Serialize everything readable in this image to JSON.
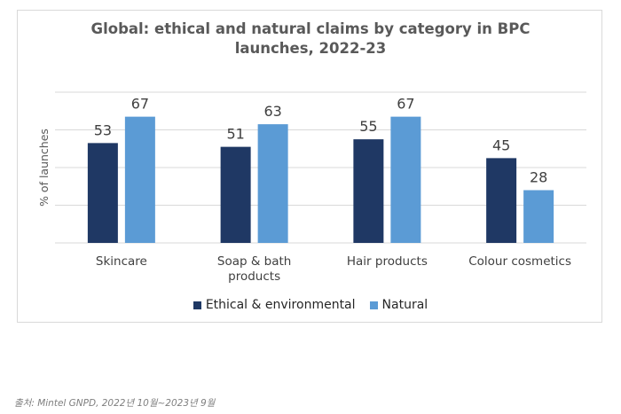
{
  "chart_data": {
    "type": "bar",
    "title": "Global: ethical and natural claims by category in BPC\nlaunches, 2022-23",
    "ylabel": "% of launches",
    "xlabel": "",
    "categories": [
      "Skincare",
      "Soap & bath\nproducts",
      "Hair products",
      "Colour cosmetics"
    ],
    "series": [
      {
        "name": "Ethical & environmental",
        "values": [
          53,
          51,
          55,
          45
        ],
        "color": "#1f3864"
      },
      {
        "name": "Natural",
        "values": [
          67,
          63,
          67,
          28
        ],
        "color": "#5b9bd5"
      }
    ],
    "ylim": [
      0,
      80
    ],
    "yticks": [
      0,
      20,
      40,
      60,
      80
    ],
    "grid": true,
    "data_labels": true,
    "legend_position": "bottom",
    "gridline_color": "#d9d9d9"
  },
  "source": "출처: Mintel GNPD, 2022년 10월~2023년 9월"
}
